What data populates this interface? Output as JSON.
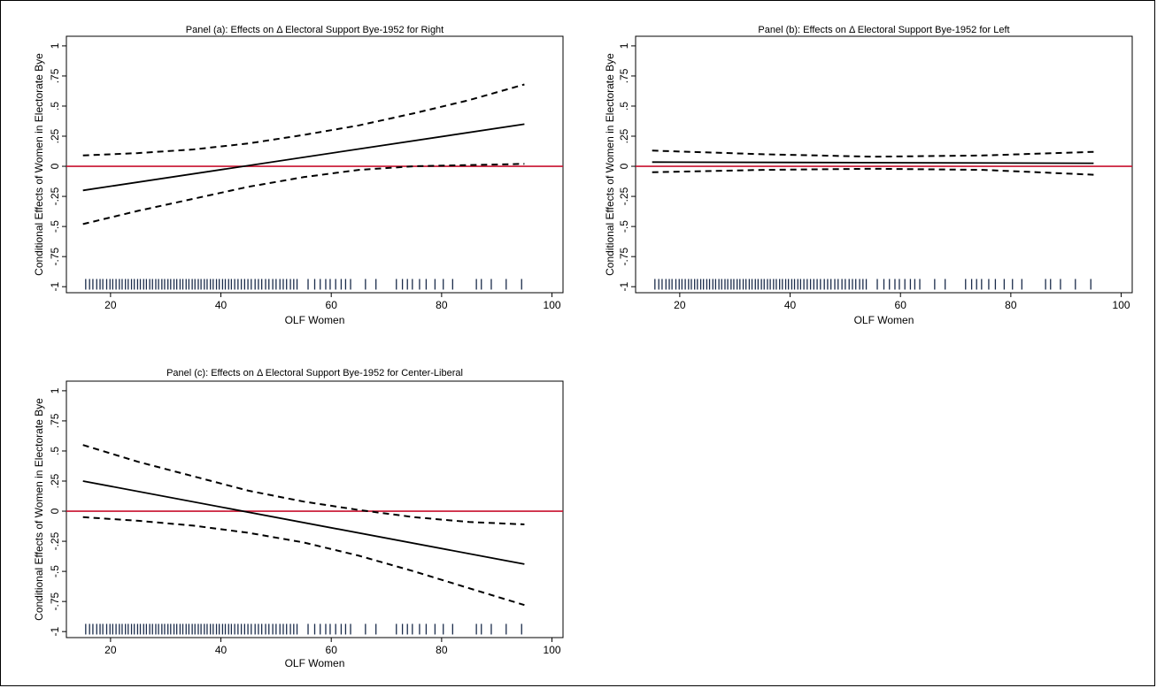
{
  "colors": {
    "estimate_line": "#000000",
    "ci_line": "#000000",
    "zero_line": "#c8102e",
    "rug": "#1a2b4a",
    "frame": "#000000"
  },
  "chart_data": [
    {
      "type": "line",
      "title": "Panel (a): Effects on Δ Electoral Support Bye-1952 for Right",
      "xlabel": "OLF Women",
      "ylabel": "Conditional Effects of Women in Electorate Bye",
      "xlim": [
        12,
        102
      ],
      "ylim": [
        -1.05,
        1.08
      ],
      "xticks": [
        20,
        40,
        60,
        80,
        100
      ],
      "xtick_labels": [
        "20",
        "40",
        "60",
        "80",
        "100"
      ],
      "yticks": [
        -1,
        -0.75,
        -0.5,
        -0.25,
        0,
        0.25,
        0.5,
        0.75,
        1
      ],
      "ytick_labels": [
        "-1",
        "-.75",
        "-.5",
        "-.25",
        "0",
        ".25",
        ".5",
        ".75",
        "1"
      ],
      "reference_line": 0,
      "series": [
        {
          "role": "estimate",
          "style": "solid",
          "x": [
            15,
            95
          ],
          "y": [
            -0.2,
            0.35
          ]
        },
        {
          "role": "upper",
          "style": "dashed",
          "x": [
            15,
            25,
            35,
            45,
            55,
            65,
            75,
            85,
            95
          ],
          "y": [
            0.09,
            0.11,
            0.14,
            0.19,
            0.26,
            0.34,
            0.44,
            0.55,
            0.68
          ]
        },
        {
          "role": "lower",
          "style": "dashed",
          "x": [
            15,
            25,
            35,
            45,
            55,
            65,
            75,
            85,
            95
          ],
          "y": [
            -0.48,
            -0.37,
            -0.27,
            -0.17,
            -0.09,
            -0.03,
            0.0,
            0.01,
            0.02
          ]
        }
      ]
    },
    {
      "type": "line",
      "title": "Panel (b): Effects on Δ Electoral Support Bye-1952 for Left",
      "xlabel": "OLF Women",
      "ylabel": "Conditional Effects of Women in Electorate Bye",
      "xlim": [
        12,
        102
      ],
      "ylim": [
        -1.05,
        1.08
      ],
      "xticks": [
        20,
        40,
        60,
        80,
        100
      ],
      "xtick_labels": [
        "20",
        "40",
        "60",
        "80",
        "100"
      ],
      "yticks": [
        -1,
        -0.75,
        -0.5,
        -0.25,
        0,
        0.25,
        0.5,
        0.75,
        1
      ],
      "ytick_labels": [
        "-1",
        "-.75",
        "-.5",
        "-.25",
        "0",
        ".25",
        ".5",
        ".75",
        "1"
      ],
      "reference_line": 0,
      "series": [
        {
          "role": "estimate",
          "style": "solid",
          "x": [
            15,
            95
          ],
          "y": [
            0.035,
            0.025
          ]
        },
        {
          "role": "upper",
          "style": "dashed",
          "x": [
            15,
            35,
            55,
            75,
            95
          ],
          "y": [
            0.13,
            0.1,
            0.08,
            0.09,
            0.12
          ]
        },
        {
          "role": "lower",
          "style": "dashed",
          "x": [
            15,
            35,
            55,
            75,
            95
          ],
          "y": [
            -0.05,
            -0.03,
            -0.02,
            -0.03,
            -0.07
          ]
        }
      ]
    },
    {
      "type": "line",
      "title": "Panel (c): Effects on Δ Electoral Support Bye-1952 for Center-Liberal",
      "xlabel": "OLF Women",
      "ylabel": "Conditional Effects of Women in Electorate Bye",
      "xlim": [
        12,
        102
      ],
      "ylim": [
        -1.05,
        1.08
      ],
      "xticks": [
        20,
        40,
        60,
        80,
        100
      ],
      "xtick_labels": [
        "20",
        "40",
        "60",
        "80",
        "100"
      ],
      "yticks": [
        -1,
        -0.75,
        -0.5,
        -0.25,
        0,
        0.25,
        0.5,
        0.75,
        1
      ],
      "ytick_labels": [
        "-1",
        "-.75",
        "-.5",
        "-.25",
        "0",
        ".25",
        ".5",
        ".75",
        "1"
      ],
      "reference_line": 0,
      "series": [
        {
          "role": "estimate",
          "style": "solid",
          "x": [
            15,
            95
          ],
          "y": [
            0.25,
            -0.44
          ]
        },
        {
          "role": "upper",
          "style": "dashed",
          "x": [
            15,
            25,
            35,
            45,
            55,
            65,
            75,
            85,
            95
          ],
          "y": [
            0.55,
            0.41,
            0.29,
            0.17,
            0.08,
            0.01,
            -0.05,
            -0.09,
            -0.11
          ]
        },
        {
          "role": "lower",
          "style": "dashed",
          "x": [
            15,
            25,
            35,
            45,
            55,
            65,
            75,
            85,
            95
          ],
          "y": [
            -0.05,
            -0.08,
            -0.12,
            -0.18,
            -0.26,
            -0.37,
            -0.5,
            -0.64,
            -0.78
          ]
        }
      ]
    }
  ],
  "rug": {
    "y": -0.98,
    "x": [
      15.5,
      16.2,
      16.8,
      17.5,
      18.1,
      18.6,
      19.3,
      19.9,
      20.4,
      21.0,
      21.6,
      22.1,
      22.7,
      23.2,
      23.8,
      24.3,
      24.9,
      25.4,
      26.0,
      26.5,
      27.1,
      27.6,
      28.2,
      28.7,
      29.3,
      29.8,
      30.4,
      30.9,
      31.5,
      32.0,
      32.6,
      33.1,
      33.7,
      34.2,
      34.8,
      35.3,
      35.9,
      36.4,
      37.0,
      37.5,
      38.1,
      38.6,
      39.2,
      39.7,
      40.3,
      40.8,
      41.4,
      41.9,
      42.5,
      43.1,
      43.7,
      44.3,
      44.9,
      45.5,
      46.2,
      46.8,
      47.4,
      48.1,
      48.7,
      49.4,
      50.0,
      50.7,
      51.3,
      51.9,
      52.6,
      53.2,
      53.8,
      55.8,
      57.0,
      58.0,
      59.0,
      59.8,
      60.8,
      61.8,
      62.6,
      63.5,
      66.2,
      68.1,
      71.8,
      72.9,
      73.8,
      74.7,
      76.0,
      77.2,
      78.8,
      80.3,
      82.0,
      86.3,
      87.2,
      89.0,
      91.7,
      94.5
    ]
  }
}
